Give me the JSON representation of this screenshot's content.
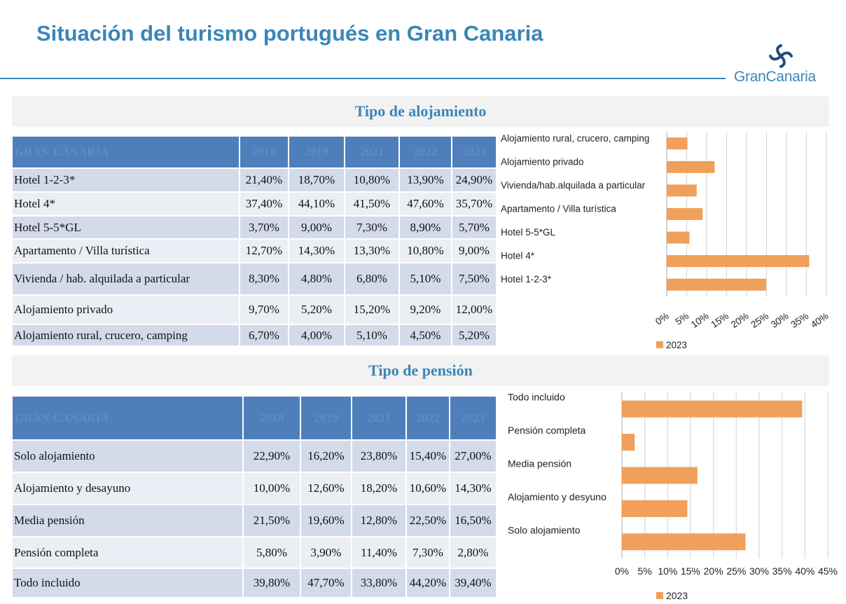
{
  "page": {
    "title": "Situación del turismo portugués en Gran Canaria",
    "logo_text": "GranCanaria"
  },
  "colors": {
    "accent": "#3a86b8",
    "table_header": "#4f7fba",
    "bar": "#f0a05a"
  },
  "sections": {
    "alojamiento": {
      "title": "Tipo de alojamiento",
      "table": {
        "headers": [
          "GRAN CANARIA",
          "2018",
          "2019",
          "2021",
          "2022",
          "2023"
        ],
        "rows": [
          [
            "Hotel 1-2-3*",
            "21,40%",
            "18,70%",
            "10,80%",
            "13,90%",
            "24,90%"
          ],
          [
            "Hotel 4*",
            "37,40%",
            "44,10%",
            "41,50%",
            "47,60%",
            "35,70%"
          ],
          [
            "Hotel 5-5*GL",
            "3,70%",
            "9,00%",
            "7,30%",
            "8,90%",
            "5,70%"
          ],
          [
            "Apartamento / Villa turística",
            "12,70%",
            "14,30%",
            "13,30%",
            "10,80%",
            "9,00%"
          ],
          [
            "Vivienda / hab. alquilada a particular",
            "8,30%",
            "4,80%",
            "6,80%",
            "5,10%",
            "7,50%"
          ],
          [
            "Alojamiento privado",
            "9,70%",
            "5,20%",
            "15,20%",
            "9,20%",
            "12,00%"
          ],
          [
            "Alojamiento rural, crucero, camping",
            "6,70%",
            "4,00%",
            "5,10%",
            "4,50%",
            "5,20%"
          ]
        ]
      }
    },
    "pension": {
      "title": "Tipo de pensión",
      "table": {
        "headers": [
          "GRAN CANARIA",
          "2018",
          "2019",
          "2021",
          "2022",
          "2023"
        ],
        "rows": [
          [
            "Solo alojamiento",
            "22,90%",
            "16,20%",
            "23,80%",
            "15,40%",
            "27,00%"
          ],
          [
            "Alojamiento y desayuno",
            "10,00%",
            "12,60%",
            "18,20%",
            "10,60%",
            "14,30%"
          ],
          [
            "Media pensión",
            "21,50%",
            "19,60%",
            "12,80%",
            "22,50%",
            "16,50%"
          ],
          [
            "Pensión completa",
            "5,80%",
            "3,90%",
            "11,40%",
            "7,30%",
            "2,80%"
          ],
          [
            "Todo incluido",
            "39,80%",
            "47,70%",
            "33,80%",
            "44,20%",
            "39,40%"
          ]
        ]
      }
    }
  },
  "chart_data": [
    {
      "type": "bar",
      "orientation": "horizontal",
      "categories": [
        "Alojamiento rural, crucero, camping",
        "Alojamiento privado",
        "Vivienda/hab.alquilada a particular",
        "Apartamento / Villa turística",
        "Hotel 5-5*GL",
        "Hotel 4*",
        "Hotel 1-2-3*"
      ],
      "series": [
        {
          "name": "2023",
          "values": [
            5.2,
            12.0,
            7.5,
            9.0,
            5.7,
            35.7,
            24.9
          ],
          "color": "#f0a05a"
        }
      ],
      "xlim": [
        0,
        40
      ],
      "xticks": [
        "0%",
        "5%",
        "10%",
        "15%",
        "20%",
        "25%",
        "30%",
        "35%",
        "40%"
      ],
      "tick_label_rotation": "diagonal",
      "grid": "vertical",
      "legend": "bottom-left"
    },
    {
      "type": "bar",
      "orientation": "horizontal",
      "categories": [
        "Todo incluido",
        "Pensión completa",
        "Media pensión",
        "Alojamiento y desyuno",
        "Solo alojamiento"
      ],
      "series": [
        {
          "name": "2023",
          "values": [
            39.4,
            2.8,
            16.5,
            14.3,
            27.0
          ],
          "color": "#f0a05a"
        }
      ],
      "xlim": [
        0,
        45
      ],
      "xticks": [
        "0%",
        "5%",
        "10%",
        "15%",
        "20%",
        "25%",
        "30%",
        "35%",
        "40%",
        "45%"
      ],
      "grid": "vertical",
      "legend": "bottom-left"
    }
  ]
}
